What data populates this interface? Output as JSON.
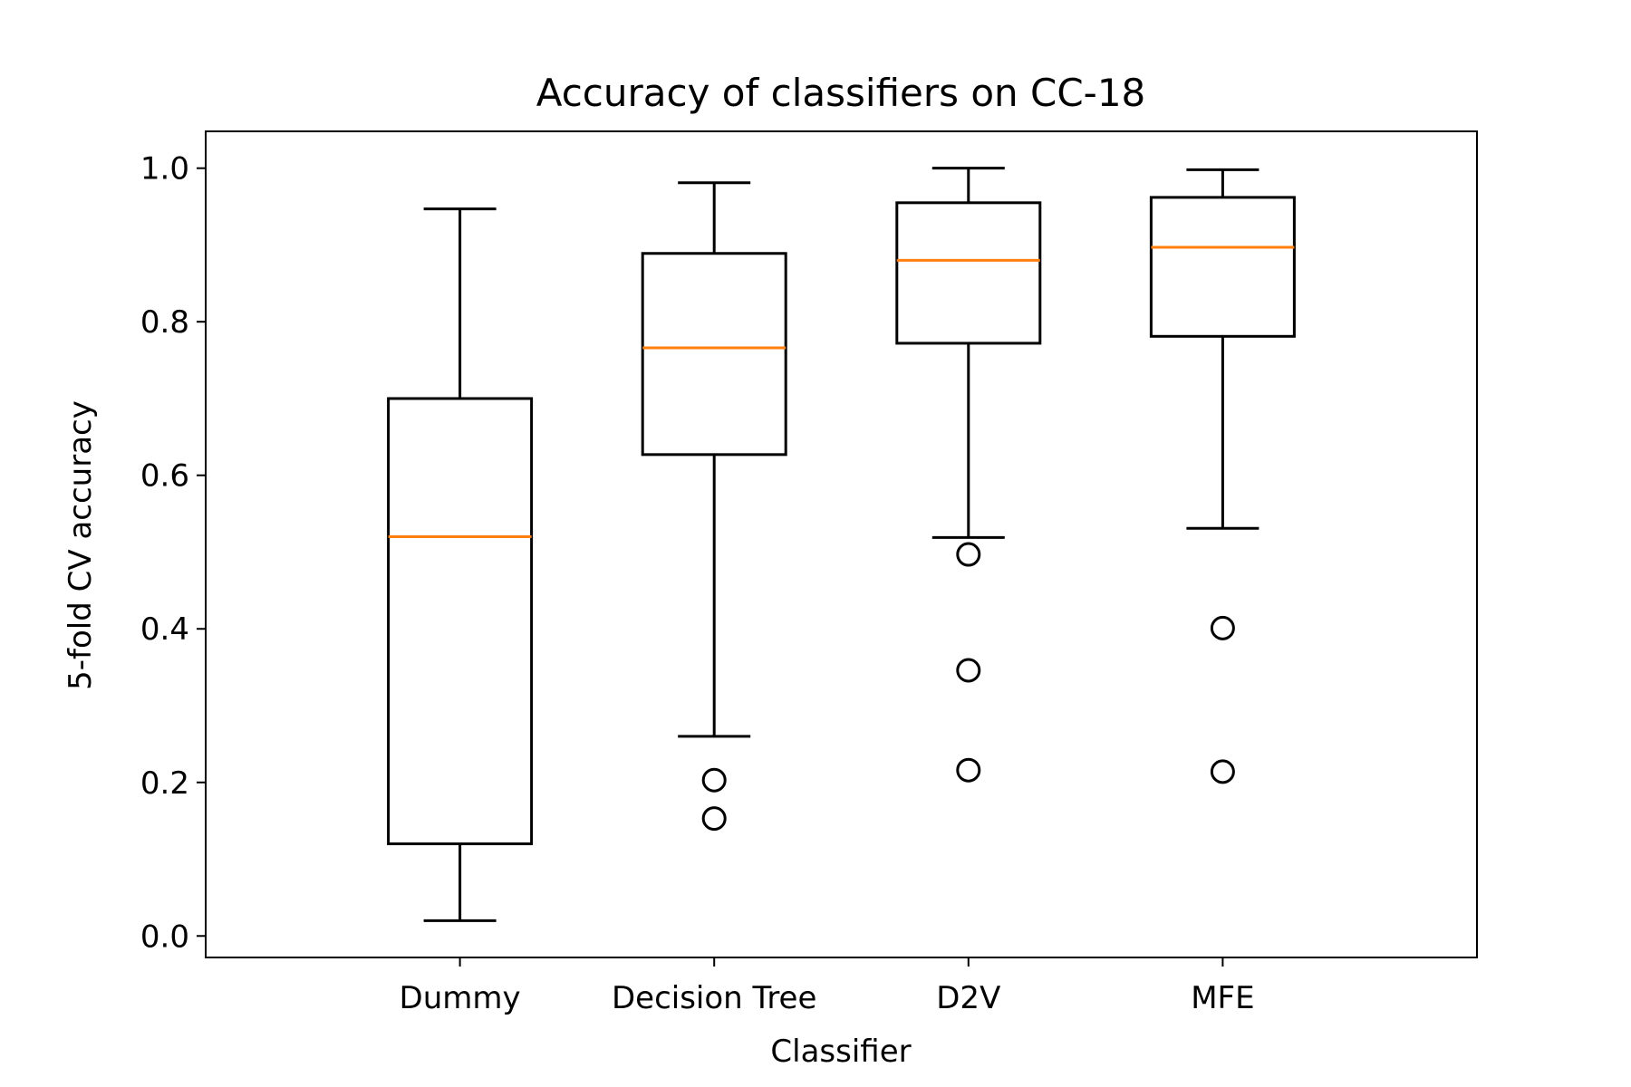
{
  "chart_data": {
    "type": "box",
    "title": "Accuracy of classifiers on CC-18",
    "xlabel": "Classifier",
    "ylabel": "5-fold CV accuracy",
    "ylim": [
      -0.028,
      1.048
    ],
    "yticks": [
      "0.0",
      "0.2",
      "0.4",
      "0.6",
      "0.8",
      "1.0"
    ],
    "yticks_values": [
      0.0,
      0.2,
      0.4,
      0.6,
      0.8,
      1.0
    ],
    "grid": false,
    "colors": {
      "box": "#000000",
      "median": "#ff7f0e"
    },
    "categories": [
      "Dummy",
      "Decision Tree",
      "D2V",
      "MFE"
    ],
    "boxes": [
      {
        "category": "Dummy",
        "whisker_low": 0.02,
        "q1": 0.12,
        "median": 0.52,
        "q3": 0.7,
        "whisker_high": 0.947,
        "outliers": []
      },
      {
        "category": "Decision Tree",
        "whisker_low": 0.26,
        "q1": 0.627,
        "median": 0.766,
        "q3": 0.889,
        "whisker_high": 0.981,
        "outliers": [
          0.203,
          0.153
        ]
      },
      {
        "category": "D2V",
        "whisker_low": 0.519,
        "q1": 0.772,
        "median": 0.88,
        "q3": 0.955,
        "whisker_high": 1.0,
        "outliers": [
          0.497,
          0.346,
          0.216
        ]
      },
      {
        "category": "MFE",
        "whisker_low": 0.531,
        "q1": 0.781,
        "median": 0.897,
        "q3": 0.962,
        "whisker_high": 0.998,
        "outliers": [
          0.401,
          0.214
        ]
      }
    ]
  }
}
